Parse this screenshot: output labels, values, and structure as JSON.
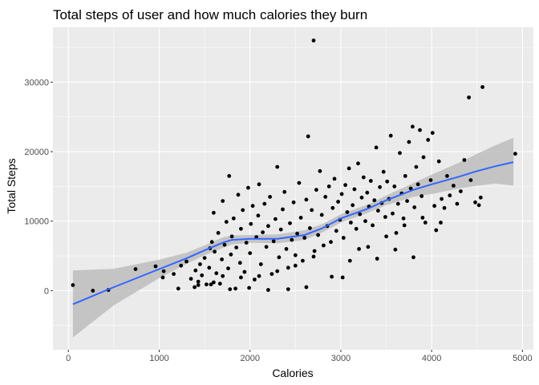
{
  "chart_data": {
    "type": "scatter",
    "title": "Total steps of user and how much calories they burn",
    "xlabel": "Calories",
    "ylabel": "Total Steps",
    "xlim": [
      -170,
      5120
    ],
    "ylim": [
      -8500,
      37900
    ],
    "x_ticks": [
      0,
      1000,
      2000,
      3000,
      4000,
      5000
    ],
    "y_ticks": [
      0,
      10000,
      20000,
      30000
    ],
    "x_tick_labels": [
      "0",
      "1000",
      "2000",
      "3000",
      "4000",
      "5000"
    ],
    "y_tick_labels": [
      "0",
      "10000",
      "20000",
      "30000"
    ],
    "grid": true,
    "legend": "none",
    "background_color": "#ebebeb",
    "grid_color": "#ffffff",
    "point_color": "#000000",
    "smooth_color": "#3366ff",
    "band_color": "#bdbdbd",
    "smooth_line": [
      [
        50,
        -1950
      ],
      [
        500,
        500
      ],
      [
        1000,
        3100
      ],
      [
        1300,
        4650
      ],
      [
        1500,
        5800
      ],
      [
        1700,
        6900
      ],
      [
        1800,
        7300
      ],
      [
        2000,
        7450
      ],
      [
        2300,
        7450
      ],
      [
        2600,
        8000
      ],
      [
        2800,
        9000
      ],
      [
        3000,
        10400
      ],
      [
        3300,
        11800
      ],
      [
        3500,
        13000
      ],
      [
        3800,
        14500
      ],
      [
        4000,
        15300
      ],
      [
        4300,
        16400
      ],
      [
        4500,
        17200
      ],
      [
        4700,
        17900
      ],
      [
        4900,
        18500
      ]
    ],
    "band_upper": [
      [
        50,
        2900
      ],
      [
        500,
        3150
      ],
      [
        1000,
        4450
      ],
      [
        1300,
        5450
      ],
      [
        1500,
        6500
      ],
      [
        1700,
        7650
      ],
      [
        1800,
        7950
      ],
      [
        2000,
        8000
      ],
      [
        2300,
        8100
      ],
      [
        2600,
        8700
      ],
      [
        2800,
        9600
      ],
      [
        3000,
        11000
      ],
      [
        3300,
        12400
      ],
      [
        3500,
        13700
      ],
      [
        3800,
        15500
      ],
      [
        4000,
        16700
      ],
      [
        4300,
        18400
      ],
      [
        4500,
        19700
      ],
      [
        4700,
        20900
      ],
      [
        4900,
        22000
      ]
    ],
    "band_lower": [
      [
        4900,
        15100
      ],
      [
        4700,
        15400
      ],
      [
        4500,
        15100
      ],
      [
        4300,
        14700
      ],
      [
        4000,
        13900
      ],
      [
        3800,
        13500
      ],
      [
        3500,
        12300
      ],
      [
        3300,
        11200
      ],
      [
        3000,
        9800
      ],
      [
        2800,
        8400
      ],
      [
        2600,
        7300
      ],
      [
        2300,
        6800
      ],
      [
        2000,
        6900
      ],
      [
        1800,
        6650
      ],
      [
        1700,
        6150
      ],
      [
        1500,
        5100
      ],
      [
        1300,
        3850
      ],
      [
        1000,
        1800
      ],
      [
        500,
        -2100
      ],
      [
        50,
        -6750
      ]
    ],
    "points": [
      [
        50,
        800
      ],
      [
        270,
        0
      ],
      [
        440,
        100
      ],
      [
        740,
        3100
      ],
      [
        960,
        3500
      ],
      [
        1050,
        2800
      ],
      [
        1040,
        1900
      ],
      [
        1160,
        2400
      ],
      [
        1210,
        300
      ],
      [
        1240,
        3600
      ],
      [
        1300,
        4200
      ],
      [
        1350,
        1700
      ],
      [
        1390,
        500
      ],
      [
        1400,
        2900
      ],
      [
        1430,
        1300
      ],
      [
        1450,
        3800
      ],
      [
        1470,
        2200
      ],
      [
        1500,
        4700
      ],
      [
        1520,
        900
      ],
      [
        1550,
        3300
      ],
      [
        1560,
        6100
      ],
      [
        1580,
        7000
      ],
      [
        1600,
        11200
      ],
      [
        1610,
        5600
      ],
      [
        1630,
        2500
      ],
      [
        1650,
        8300
      ],
      [
        1670,
        1000
      ],
      [
        1690,
        4500
      ],
      [
        1700,
        12900
      ],
      [
        1720,
        6600
      ],
      [
        1740,
        9900
      ],
      [
        1760,
        3200
      ],
      [
        1770,
        16500
      ],
      [
        1790,
        5200
      ],
      [
        1800,
        7800
      ],
      [
        1820,
        10400
      ],
      [
        1840,
        300
      ],
      [
        1850,
        6200
      ],
      [
        1870,
        13800
      ],
      [
        1890,
        4000
      ],
      [
        1900,
        8900
      ],
      [
        1920,
        11600
      ],
      [
        1940,
        2700
      ],
      [
        1960,
        6900
      ],
      [
        1980,
        14800
      ],
      [
        2000,
        5400
      ],
      [
        2010,
        9600
      ],
      [
        2030,
        12200
      ],
      [
        2050,
        1600
      ],
      [
        2070,
        7700
      ],
      [
        2090,
        10800
      ],
      [
        2100,
        15300
      ],
      [
        2120,
        3800
      ],
      [
        2140,
        8400
      ],
      [
        2160,
        12500
      ],
      [
        2180,
        6300
      ],
      [
        2200,
        9300
      ],
      [
        2220,
        13500
      ],
      [
        2240,
        2400
      ],
      [
        2260,
        7100
      ],
      [
        2280,
        10300
      ],
      [
        2300,
        17800
      ],
      [
        2320,
        4800
      ],
      [
        2340,
        8800
      ],
      [
        2360,
        11700
      ],
      [
        2380,
        14200
      ],
      [
        2400,
        6000
      ],
      [
        2420,
        3300
      ],
      [
        2440,
        9700
      ],
      [
        2460,
        7300
      ],
      [
        2480,
        12700
      ],
      [
        2500,
        5100
      ],
      [
        2520,
        8200
      ],
      [
        2540,
        15500
      ],
      [
        2560,
        10500
      ],
      [
        2580,
        4300
      ],
      [
        2600,
        7600
      ],
      [
        2620,
        13100
      ],
      [
        2640,
        22200
      ],
      [
        2660,
        9000
      ],
      [
        2680,
        11600
      ],
      [
        2700,
        36000
      ],
      [
        2710,
        5700
      ],
      [
        2730,
        14500
      ],
      [
        2750,
        8000
      ],
      [
        2770,
        17200
      ],
      [
        2790,
        10900
      ],
      [
        2810,
        6500
      ],
      [
        2830,
        13500
      ],
      [
        2850,
        9300
      ],
      [
        2870,
        15000
      ],
      [
        2890,
        7000
      ],
      [
        2910,
        11900
      ],
      [
        2930,
        16100
      ],
      [
        2950,
        8600
      ],
      [
        2970,
        12800
      ],
      [
        2990,
        10200
      ],
      [
        3010,
        13900
      ],
      [
        3030,
        7600
      ],
      [
        3050,
        15200
      ],
      [
        3070,
        11300
      ],
      [
        3090,
        17600
      ],
      [
        3110,
        9800
      ],
      [
        3130,
        12300
      ],
      [
        3150,
        14600
      ],
      [
        3170,
        8900
      ],
      [
        3190,
        18300
      ],
      [
        3210,
        11000
      ],
      [
        3230,
        13400
      ],
      [
        3250,
        16300
      ],
      [
        3270,
        10000
      ],
      [
        3290,
        14100
      ],
      [
        3310,
        12100
      ],
      [
        3330,
        15800
      ],
      [
        3350,
        9400
      ],
      [
        3370,
        13000
      ],
      [
        3390,
        20600
      ],
      [
        3410,
        11500
      ],
      [
        3430,
        14900
      ],
      [
        3450,
        12600
      ],
      [
        3470,
        17100
      ],
      [
        3490,
        10600
      ],
      [
        3510,
        15700
      ],
      [
        3530,
        13200
      ],
      [
        3550,
        22300
      ],
      [
        3570,
        11100
      ],
      [
        3590,
        15000
      ],
      [
        3610,
        8300
      ],
      [
        3630,
        12500
      ],
      [
        3650,
        19800
      ],
      [
        3670,
        14000
      ],
      [
        3690,
        10400
      ],
      [
        3710,
        16500
      ],
      [
        3730,
        12900
      ],
      [
        3750,
        21400
      ],
      [
        3770,
        14700
      ],
      [
        3790,
        23600
      ],
      [
        3810,
        12000
      ],
      [
        3830,
        17800
      ],
      [
        3850,
        15300
      ],
      [
        3870,
        23100
      ],
      [
        3890,
        13600
      ],
      [
        3910,
        19200
      ],
      [
        3930,
        9800
      ],
      [
        3960,
        21700
      ],
      [
        3990,
        15900
      ],
      [
        4010,
        22700
      ],
      [
        4030,
        12200
      ],
      [
        4050,
        8700
      ],
      [
        4080,
        18600
      ],
      [
        4110,
        13200
      ],
      [
        4140,
        11900
      ],
      [
        4170,
        16500
      ],
      [
        4200,
        13700
      ],
      [
        4240,
        15100
      ],
      [
        4280,
        12500
      ],
      [
        4320,
        14300
      ],
      [
        4360,
        18800
      ],
      [
        4410,
        27800
      ],
      [
        4430,
        15900
      ],
      [
        4480,
        12700
      ],
      [
        4520,
        12300
      ],
      [
        4540,
        13400
      ],
      [
        4560,
        29300
      ],
      [
        4920,
        19700
      ],
      [
        2900,
        2000
      ],
      [
        3020,
        1900
      ],
      [
        2620,
        500
      ],
      [
        2420,
        200
      ],
      [
        2200,
        100
      ],
      [
        1990,
        400
      ],
      [
        1780,
        200
      ],
      [
        1570,
        900
      ],
      [
        1430,
        800
      ],
      [
        3200,
        6000
      ],
      [
        3400,
        4600
      ],
      [
        3600,
        5900
      ],
      [
        3800,
        4800
      ],
      [
        4100,
        9800
      ],
      [
        2700,
        4900
      ],
      [
        2500,
        3600
      ],
      [
        2300,
        2800
      ],
      [
        2100,
        2100
      ],
      [
        1900,
        1900
      ],
      [
        1700,
        2100
      ],
      [
        1600,
        1200
      ],
      [
        3100,
        4300
      ],
      [
        3300,
        6300
      ],
      [
        3500,
        7800
      ],
      [
        3700,
        9400
      ],
      [
        3900,
        10500
      ]
    ]
  }
}
